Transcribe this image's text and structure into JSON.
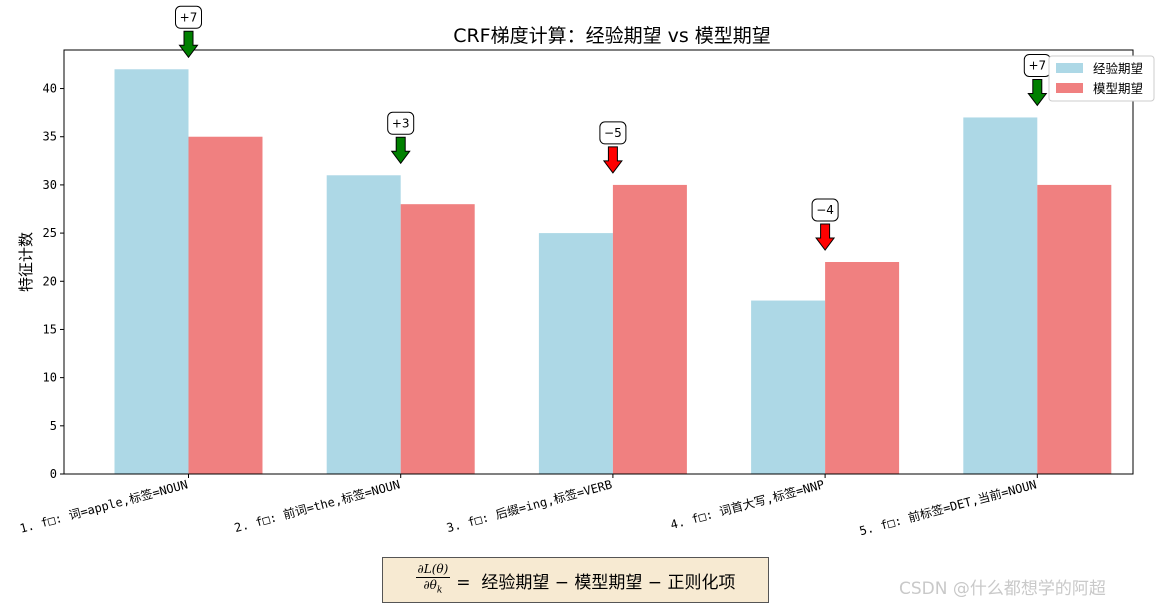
{
  "chart_data": {
    "type": "bar",
    "title": "CRF梯度计算：经验期望 vs 模型期望",
    "xlabel": "",
    "ylabel": "特征计数",
    "ylim": [
      0,
      44
    ],
    "yticks": [
      0,
      5,
      10,
      15,
      20,
      25,
      30,
      35,
      40
    ],
    "grid": false,
    "legend_position": "top-right",
    "categories": [
      "1. f□: 词=apple,标签=NOUN",
      "2. f□: 前词=the,标签=NOUN",
      "3. f□: 后缀=ing,标签=VERB",
      "4. f□: 词首大写,标签=NNP",
      "5. f□: 前标签=DET,当前=NOUN"
    ],
    "series": [
      {
        "name": "经验期望",
        "color": "#add8e6",
        "values": [
          42,
          31,
          25,
          18,
          37
        ]
      },
      {
        "name": "模型期望",
        "color": "#f08080",
        "values": [
          35,
          28,
          30,
          22,
          30
        ]
      }
    ],
    "annotations": [
      {
        "category_index": 0,
        "text": "+7",
        "direction": "down",
        "color": "#008000",
        "value": 7
      },
      {
        "category_index": 1,
        "text": "+3",
        "direction": "down",
        "color": "#008000",
        "value": 3
      },
      {
        "category_index": 2,
        "text": "−5",
        "direction": "down",
        "color": "#ff0000",
        "value": -5
      },
      {
        "category_index": 3,
        "text": "−4",
        "direction": "down",
        "color": "#ff0000",
        "value": -4
      },
      {
        "category_index": 4,
        "text": "+7",
        "direction": "down",
        "color": "#008000",
        "value": 7
      }
    ]
  },
  "formula": {
    "numerator": "∂L(θ)",
    "denominator": "∂θ",
    "denominator_sub": "k",
    "rhs": "=  经验期望 − 模型期望 − 正则化项",
    "box_color": "#f7ead2"
  },
  "watermark": "CSDN @什么都想学的阿超"
}
